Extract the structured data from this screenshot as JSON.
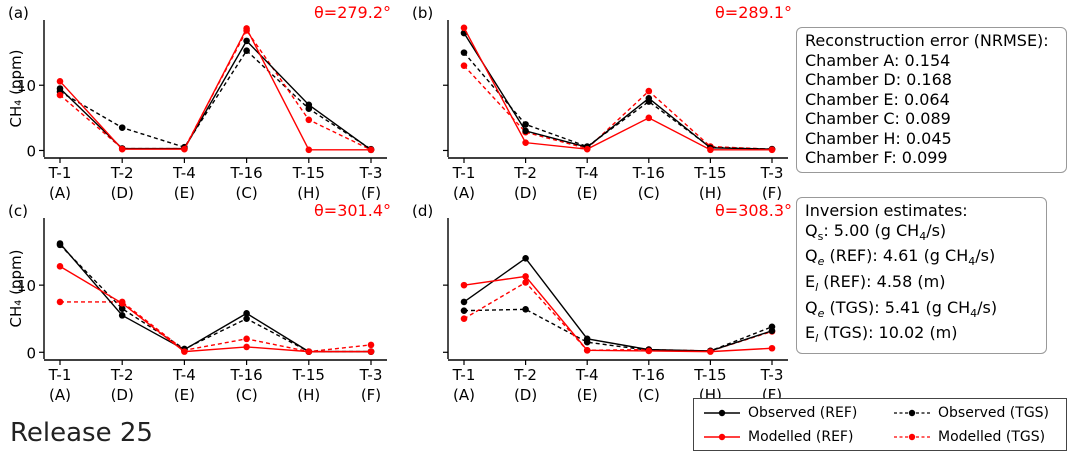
{
  "chart_data": [
    {
      "type": "line",
      "panel": "(a)",
      "theta": "θ=279.2°",
      "categories": [
        "T-1\n(A)",
        "T-2\n(D)",
        "T-4\n(E)",
        "T-16\n(C)",
        "T-15\n(H)",
        "T-3\n(F)"
      ],
      "ylabel": "CH4 (ppm)",
      "yticks": [
        0,
        10
      ],
      "ylim": [
        -1,
        20
      ],
      "series": [
        {
          "name": "Observed (REF)",
          "values": [
            9.5,
            0.3,
            0.3,
            16.8,
            7.0,
            0.1
          ]
        },
        {
          "name": "Modelled (REF)",
          "values": [
            10.6,
            0.2,
            0.2,
            18.7,
            0.1,
            0.1
          ]
        },
        {
          "name": "Observed (TGS)",
          "values": [
            9.0,
            3.5,
            0.5,
            15.3,
            6.4,
            0.2
          ]
        },
        {
          "name": "Modelled (TGS)",
          "values": [
            8.5,
            0.3,
            0.3,
            18.4,
            4.7,
            0.1
          ]
        }
      ]
    },
    {
      "type": "line",
      "panel": "(b)",
      "theta": "θ=289.1°",
      "categories": [
        "T-1\n(A)",
        "T-2\n(D)",
        "T-4\n(E)",
        "T-16\n(C)",
        "T-15\n(H)",
        "T-3\n(F)"
      ],
      "ylabel": "",
      "yticks": [
        0,
        10
      ],
      "ylim": [
        -1,
        20
      ],
      "series": [
        {
          "name": "Observed (REF)",
          "values": [
            18.0,
            3.0,
            0.5,
            8.0,
            0.4,
            0.2
          ]
        },
        {
          "name": "Modelled (REF)",
          "values": [
            18.8,
            1.2,
            0.2,
            5.0,
            0.1,
            0.1
          ]
        },
        {
          "name": "Observed (TGS)",
          "values": [
            15.0,
            4.0,
            0.6,
            7.5,
            0.5,
            0.2
          ]
        },
        {
          "name": "Modelled (TGS)",
          "values": [
            13.0,
            2.8,
            0.3,
            9.1,
            0.6,
            0.2
          ]
        }
      ]
    },
    {
      "type": "line",
      "panel": "(c)",
      "theta": "θ=301.4°",
      "categories": [
        "T-1\n(A)",
        "T-2\n(D)",
        "T-4\n(E)",
        "T-16\n(C)",
        "T-15\n(H)",
        "T-3\n(F)"
      ],
      "ylabel": "CH4 (ppm)",
      "yticks": [
        0,
        10
      ],
      "ylim": [
        -1,
        20
      ],
      "series": [
        {
          "name": "Observed (REF)",
          "values": [
            16.2,
            5.5,
            0.4,
            5.8,
            0.1,
            0.1
          ]
        },
        {
          "name": "Modelled (REF)",
          "values": [
            12.8,
            7.3,
            0.1,
            0.8,
            0.1,
            0.1
          ]
        },
        {
          "name": "Observed (TGS)",
          "values": [
            16.0,
            6.5,
            0.5,
            5.0,
            0.1,
            0.1
          ]
        },
        {
          "name": "Modelled (TGS)",
          "values": [
            7.5,
            7.5,
            0.3,
            2.0,
            0.1,
            1.1
          ]
        }
      ]
    },
    {
      "type": "line",
      "panel": "(d)",
      "theta": "θ=308.3°",
      "categories": [
        "T-1\n(A)",
        "T-2\n(D)",
        "T-4\n(E)",
        "T-16\n(C)",
        "T-15\n(H)",
        "T-3\n(F)"
      ],
      "ylabel": "",
      "yticks": [
        0,
        10
      ],
      "ylim": [
        -1,
        20
      ],
      "series": [
        {
          "name": "Observed (REF)",
          "values": [
            7.5,
            14.0,
            2.0,
            0.4,
            0.2,
            3.2
          ]
        },
        {
          "name": "Modelled (REF)",
          "values": [
            10.0,
            11.3,
            0.3,
            0.2,
            0.1,
            0.6
          ]
        },
        {
          "name": "Observed (TGS)",
          "values": [
            6.2,
            6.4,
            1.5,
            0.3,
            0.2,
            3.8
          ]
        },
        {
          "name": "Modelled (TGS)",
          "values": [
            5.0,
            10.4,
            0.3,
            0.4,
            0.2,
            3.1
          ]
        }
      ]
    }
  ],
  "styles": {
    "ref_color": "#000000",
    "model_color": "#ff0000",
    "theta_color": "#ff0000"
  },
  "reconstruction_error": {
    "title": "Reconstruction error (NRMSE):",
    "lines": [
      "Chamber A: 0.154",
      "Chamber D: 0.168",
      "Chamber E: 0.064",
      "Chamber C: 0.089",
      "Chamber H: 0.045",
      "Chamber F: 0.099"
    ]
  },
  "inversion_estimates": {
    "title": "Inversion estimates:",
    "lines": [
      "Qs: 5.00 (g CH4/s)",
      "Qe (REF): 4.61 (g CH4/s)",
      "El (REF): 4.58 (m)",
      "Qe (TGS): 5.41 (g CH4/s)",
      "El (TGS): 10.02 (m)"
    ]
  },
  "legend": {
    "observed_ref": "Observed (REF)",
    "modelled_ref": "Modelled (REF)",
    "observed_tgs": "Observed (TGS)",
    "modelled_tgs": "Modelled (TGS)"
  },
  "release_label": "Release 25"
}
